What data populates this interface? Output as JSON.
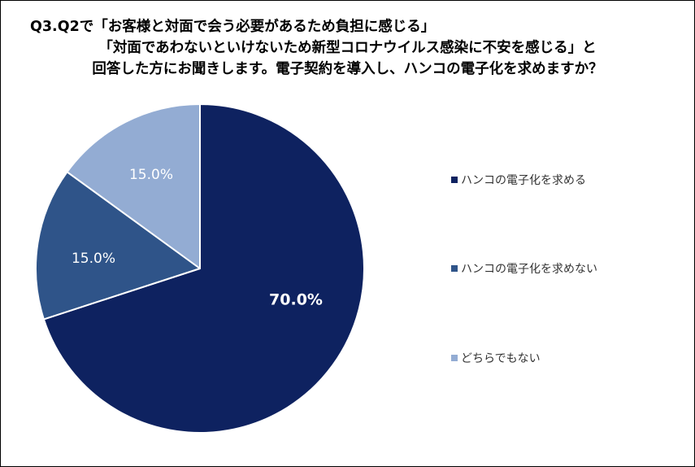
{
  "title_lines": [
    "Q3.Q2で「お客様と対面で会う必要があるため負担に感じる」",
    "「対面であわないといけないため新型コロナウイルス感染に不安を感じる」と",
    "回答した方にお聞きします。電子契約を導入し、ハンコの電子化を求めますか？"
  ],
  "chart_data": {
    "type": "pie",
    "title": "Q3.Q2で「お客様と対面で会う必要があるため負担に感じる」「対面であわないといけないため新型コロナウイルス感染に不安を感じる」と回答した方にお聞きします。電子契約を導入し、ハンコの電子化を求めますか？",
    "categories": [
      "ハンコの電子化を求める",
      "ハンコの電子化を求めない",
      "どちらでもない"
    ],
    "values": [
      70.0,
      15.0,
      15.0
    ],
    "data_labels": [
      "70.0%",
      "15.0%",
      "15.0%"
    ],
    "colors": [
      "#0e2260",
      "#2f5489",
      "#93acd3"
    ],
    "label_colors": [
      "#ffffff",
      "#ffffff",
      "#ffffff"
    ],
    "legend_position": "right"
  }
}
